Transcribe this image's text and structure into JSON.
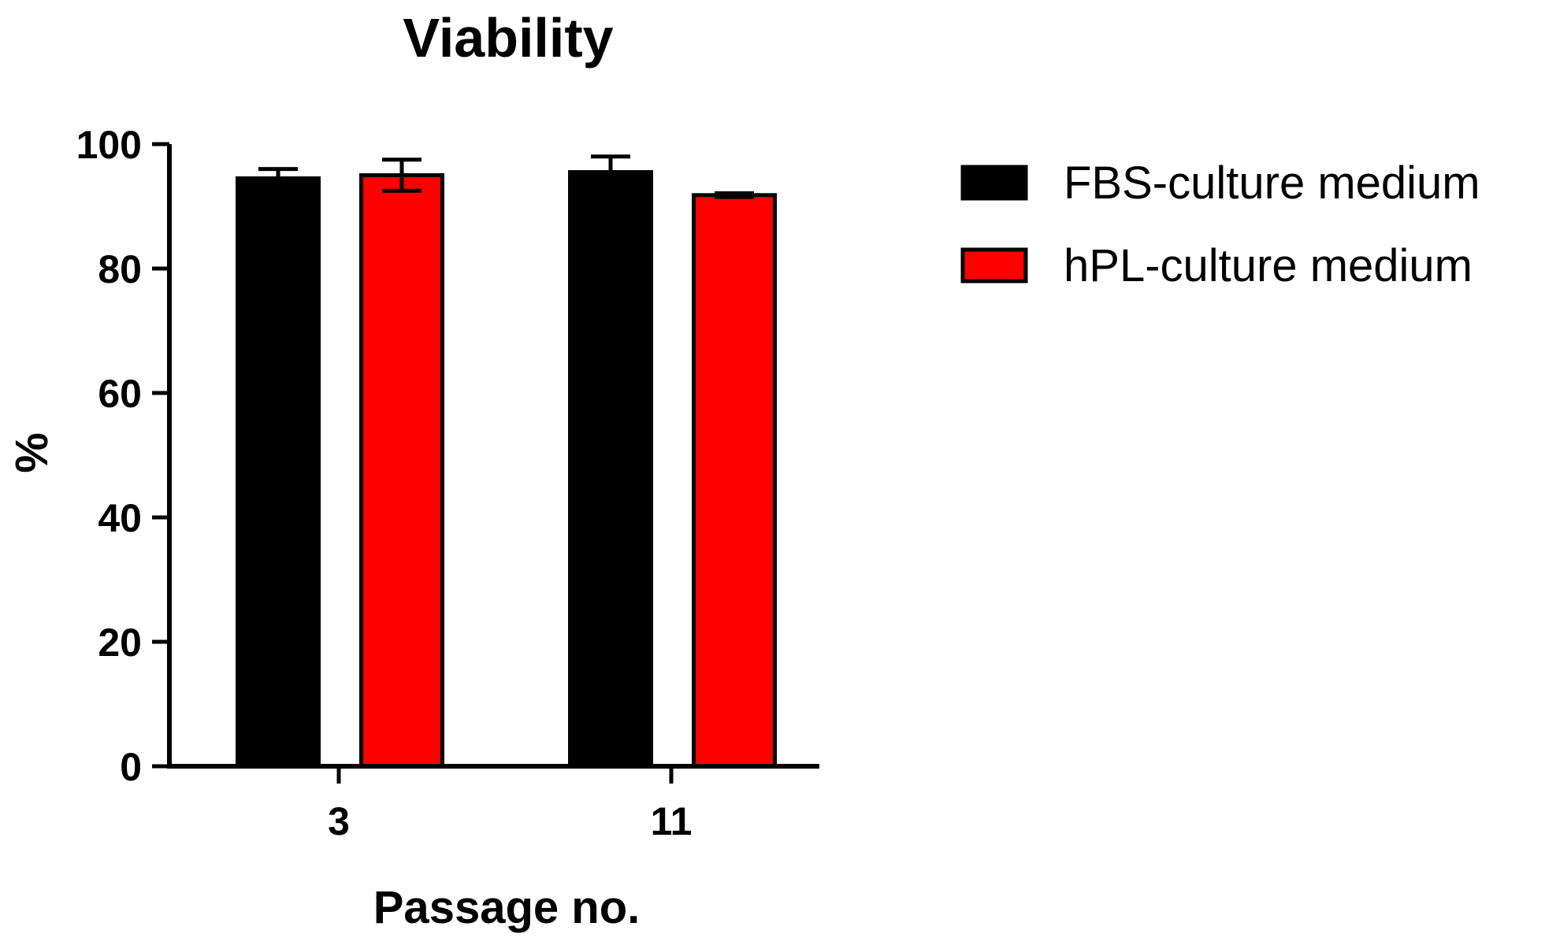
{
  "chart_data": {
    "type": "bar",
    "title": "Viability",
    "xlabel": "Passage no.",
    "ylabel": "%",
    "categories": [
      "3",
      "11"
    ],
    "ylim": [
      0,
      100
    ],
    "yticks": [
      0,
      20,
      40,
      60,
      80,
      100
    ],
    "series": [
      {
        "name": "FBS-culture medium",
        "color": "#000000",
        "values": [
          94.5,
          95.5
        ],
        "errors": [
          1.5,
          2.5
        ]
      },
      {
        "name": "hPL-culture medium",
        "color": "#ff0000",
        "values": [
          95.0,
          91.8
        ],
        "errors": [
          2.5,
          0.3
        ]
      }
    ],
    "legend_position": "right",
    "grid": false
  }
}
